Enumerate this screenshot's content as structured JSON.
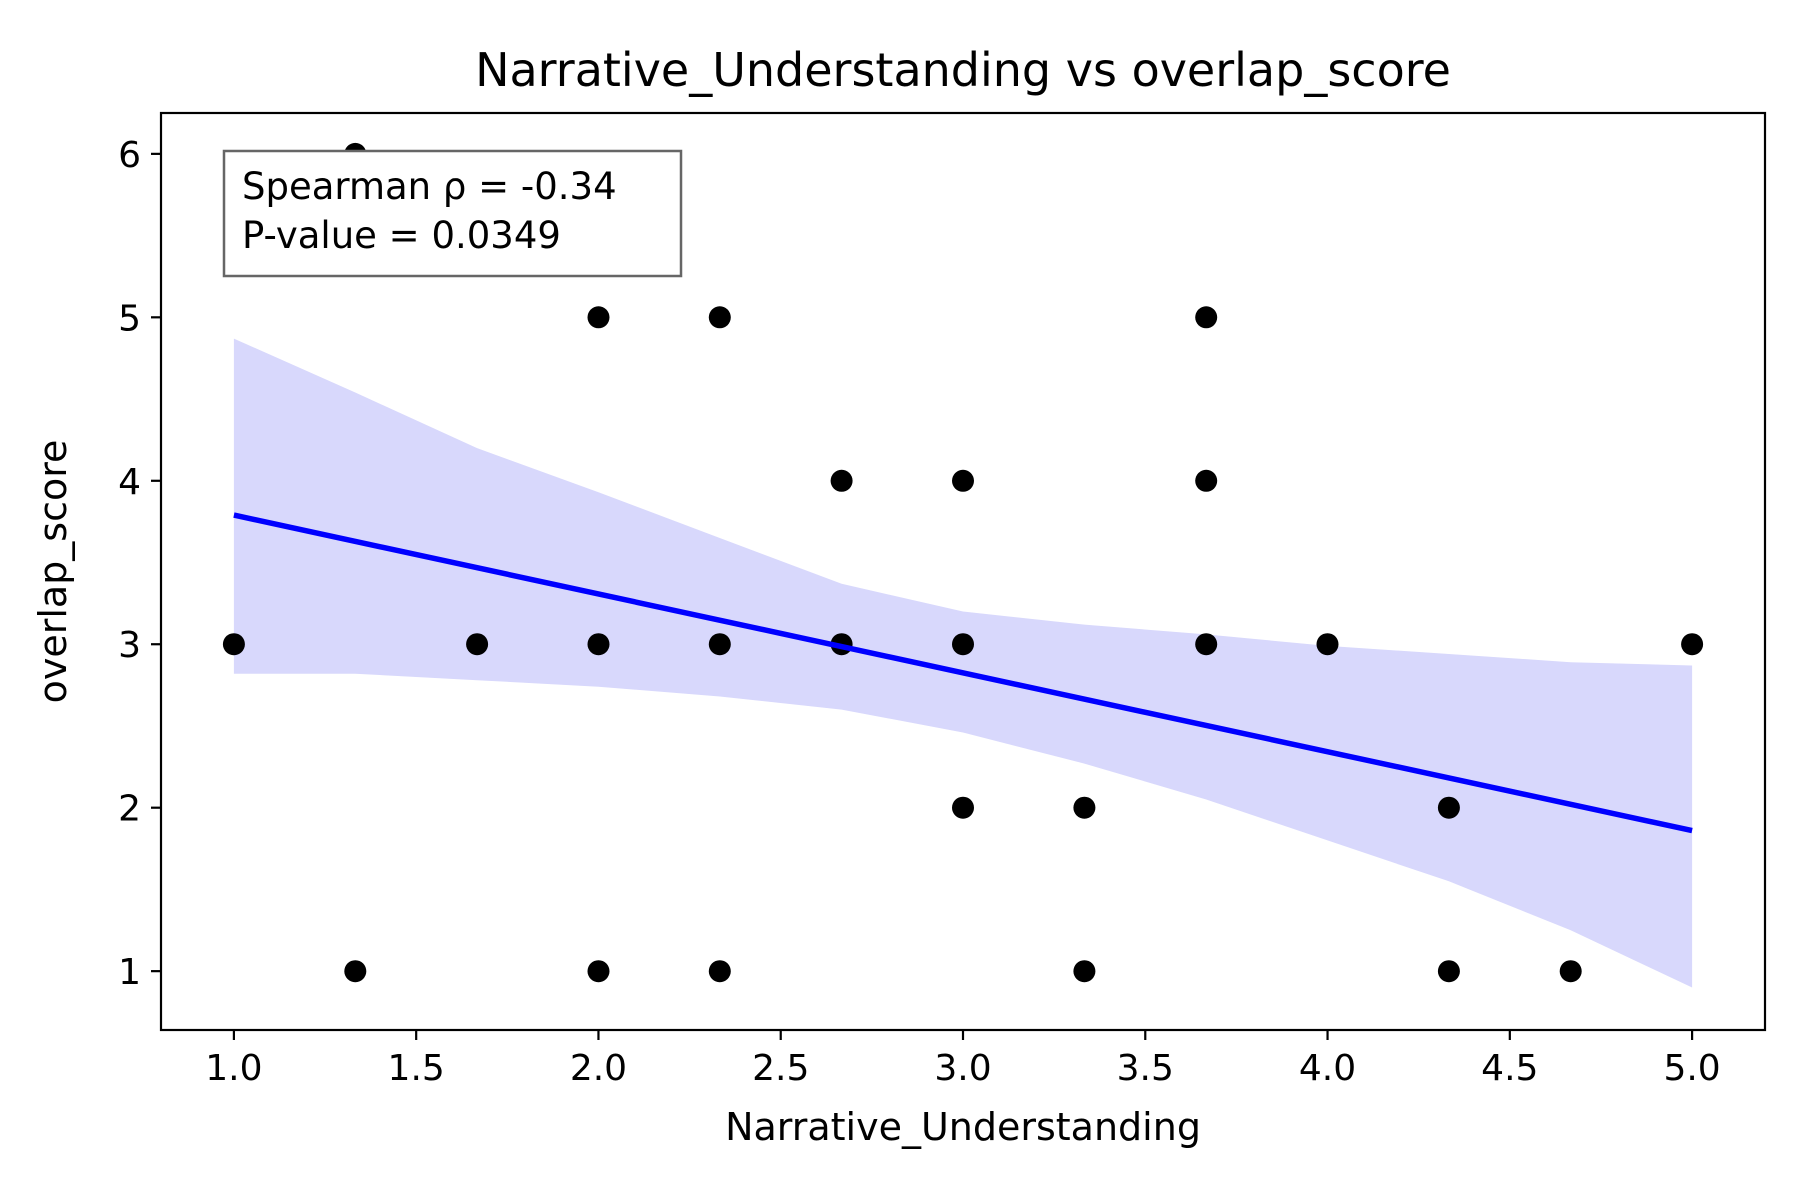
{
  "chart_data": {
    "type": "scatter",
    "title": "Narrative_Understanding vs overlap_score",
    "xlabel": "Narrative_Understanding",
    "ylabel": "overlap_score",
    "xlim": [
      0.8,
      5.2
    ],
    "ylim": [
      0.64,
      6.25
    ],
    "x_ticks": [
      "1.0",
      "1.5",
      "2.0",
      "2.5",
      "3.0",
      "3.5",
      "4.0",
      "4.5",
      "5.0"
    ],
    "y_ticks": [
      "1",
      "2",
      "3",
      "4",
      "5",
      "6"
    ],
    "grid": false,
    "points": [
      {
        "x": 1.0,
        "y": 3
      },
      {
        "x": 1.333,
        "y": 6
      },
      {
        "x": 1.333,
        "y": 1
      },
      {
        "x": 1.667,
        "y": 3
      },
      {
        "x": 2.0,
        "y": 5
      },
      {
        "x": 2.0,
        "y": 3
      },
      {
        "x": 2.0,
        "y": 1
      },
      {
        "x": 2.333,
        "y": 5
      },
      {
        "x": 2.333,
        "y": 3
      },
      {
        "x": 2.333,
        "y": 1
      },
      {
        "x": 2.667,
        "y": 4
      },
      {
        "x": 2.667,
        "y": 3
      },
      {
        "x": 3.0,
        "y": 4
      },
      {
        "x": 3.0,
        "y": 3
      },
      {
        "x": 3.0,
        "y": 2
      },
      {
        "x": 3.333,
        "y": 2
      },
      {
        "x": 3.333,
        "y": 1
      },
      {
        "x": 3.667,
        "y": 5
      },
      {
        "x": 3.667,
        "y": 4
      },
      {
        "x": 3.667,
        "y": 3
      },
      {
        "x": 4.0,
        "y": 3
      },
      {
        "x": 4.333,
        "y": 2
      },
      {
        "x": 4.333,
        "y": 1
      },
      {
        "x": 4.667,
        "y": 1
      },
      {
        "x": 5.0,
        "y": 3
      }
    ],
    "regression_line": {
      "x": [
        1.0,
        5.0
      ],
      "y": [
        3.79,
        1.86
      ]
    },
    "confidence_band": {
      "x": [
        1.0,
        1.333,
        1.667,
        2.0,
        2.333,
        2.667,
        3.0,
        3.333,
        3.667,
        4.0,
        4.333,
        4.667,
        5.0
      ],
      "upper": [
        4.87,
        4.54,
        4.2,
        3.93,
        3.65,
        3.37,
        3.2,
        3.12,
        3.06,
        2.99,
        2.94,
        2.89,
        2.87
      ],
      "lower": [
        2.82,
        2.82,
        2.78,
        2.74,
        2.68,
        2.6,
        2.46,
        2.27,
        2.05,
        1.8,
        1.55,
        1.25,
        0.9
      ]
    },
    "annotation": {
      "line1": "Spearman ρ = -0.34",
      "line2": "P-value = 0.0349",
      "location": "top-left"
    },
    "colors": {
      "points": "#000000",
      "line": "#0000ff",
      "band": "#d8d8fc",
      "annotation_border": "#666666"
    }
  }
}
